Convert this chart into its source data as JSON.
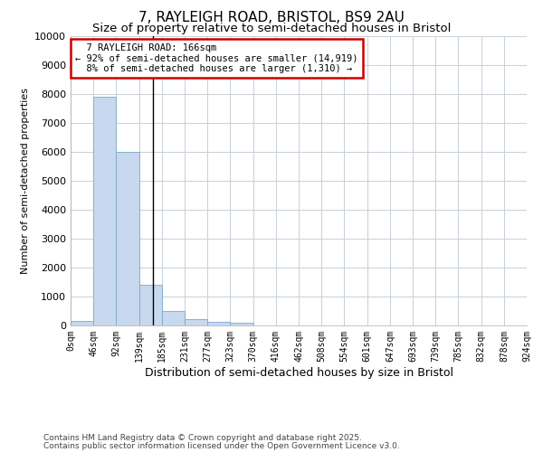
{
  "title1": "7, RAYLEIGH ROAD, BRISTOL, BS9 2AU",
  "title2": "Size of property relative to semi-detached houses in Bristol",
  "xlabel": "Distribution of semi-detached houses by size in Bristol",
  "ylabel": "Number of semi-detached properties",
  "footnote1": "Contains HM Land Registry data © Crown copyright and database right 2025.",
  "footnote2": "Contains public sector information licensed under the Open Government Licence v3.0.",
  "bin_edges": [
    0,
    46,
    92,
    139,
    185,
    231,
    277,
    323,
    370,
    416,
    462,
    508,
    554,
    601,
    647,
    693,
    739,
    785,
    832,
    878,
    924
  ],
  "bin_labels": [
    "0sqm",
    "46sqm",
    "92sqm",
    "139sqm",
    "185sqm",
    "231sqm",
    "277sqm",
    "323sqm",
    "370sqm",
    "416sqm",
    "462sqm",
    "508sqm",
    "554sqm",
    "601sqm",
    "647sqm",
    "693sqm",
    "739sqm",
    "785sqm",
    "832sqm",
    "878sqm",
    "924sqm"
  ],
  "bar_values": [
    150,
    7900,
    6000,
    1400,
    500,
    230,
    120,
    80,
    10,
    5,
    3,
    1,
    0,
    0,
    0,
    0,
    0,
    0,
    0,
    0
  ],
  "bar_color": "#c8d8ee",
  "bar_edge_color": "#7aaacc",
  "property_size": 166,
  "marker_line_color": "#000000",
  "annotation_text": "  7 RAYLEIGH ROAD: 166sqm  \n← 92% of semi-detached houses are smaller (14,919)\n  8% of semi-detached houses are larger (1,310) →",
  "annotation_box_color": "#ffffff",
  "annotation_box_edge_color": "#cc0000",
  "ylim": [
    0,
    10000
  ],
  "yticks": [
    0,
    1000,
    2000,
    3000,
    4000,
    5000,
    6000,
    7000,
    8000,
    9000,
    10000
  ],
  "grid_color": "#c8d0d8",
  "bg_color": "#ffffff",
  "plot_bg_color": "#ffffff",
  "title1_fontsize": 11,
  "title2_fontsize": 9.5
}
